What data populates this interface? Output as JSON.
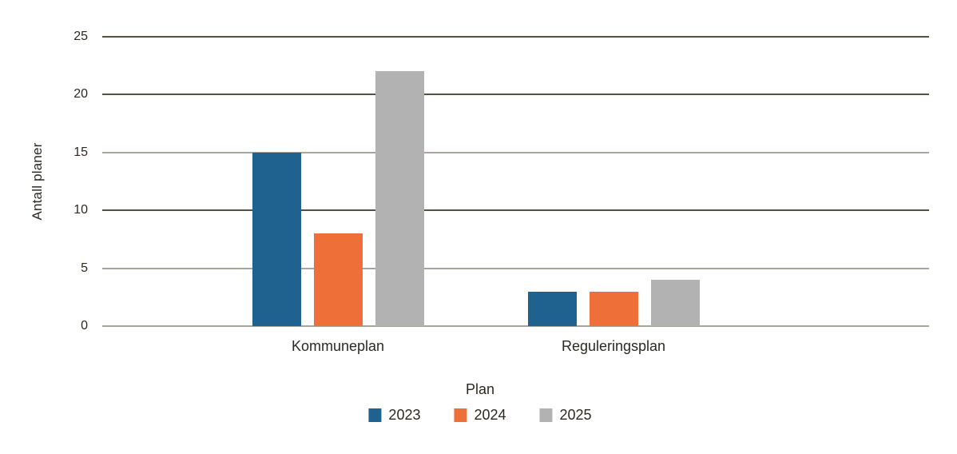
{
  "chart_data": {
    "type": "bar",
    "title": "",
    "xlabel": "",
    "ylabel": "Antall planer",
    "legend_title": "Plan",
    "legend_position": "bottom-center",
    "grid": "horizontal",
    "ylim": [
      0,
      25
    ],
    "categories": [
      "Kommuneplan",
      "Reguleringsplan"
    ],
    "series": [
      {
        "name": "2023",
        "color": "#1f628f",
        "values": [
          15,
          3
        ]
      },
      {
        "name": "2024",
        "color": "#ee7038",
        "values": [
          8,
          3
        ]
      },
      {
        "name": "2025",
        "color": "#b2b2b2",
        "values": [
          22,
          4
        ]
      }
    ],
    "yticks": [
      {
        "value": 0,
        "shade": "light"
      },
      {
        "value": 5,
        "shade": "light"
      },
      {
        "value": 10,
        "shade": "dark"
      },
      {
        "value": 15,
        "shade": "light"
      },
      {
        "value": 20,
        "shade": "dark"
      },
      {
        "value": 25,
        "shade": "dark"
      }
    ]
  },
  "palette": {
    "text": "#2e2920",
    "gridline_dark": "#56513e",
    "gridline_light": "#a9a59c",
    "background": "#ffffff"
  }
}
